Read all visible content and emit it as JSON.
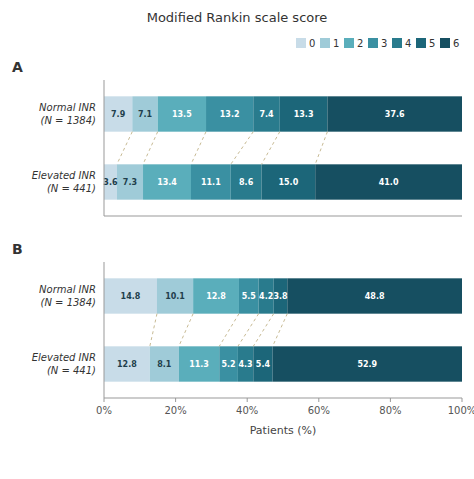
{
  "chart_data": [
    {
      "type": "bar",
      "orientation": "horizontal",
      "stacked": true,
      "data_labels": true,
      "title": "Modified Rankin scale score",
      "annotations": [
        "A"
      ],
      "categories": [
        "Normal INR\n(N = 1384)",
        "Elevated INR\n(N = 441)"
      ],
      "series": [
        {
          "name": "0",
          "color": "#c8dce8",
          "values": [
            7.9,
            3.6
          ],
          "value_labels": [
            "7.9",
            "3.6"
          ]
        },
        {
          "name": "1",
          "color": "#9fcbd8",
          "values": [
            7.1,
            7.3
          ],
          "value_labels": [
            "7.1",
            "7.3"
          ]
        },
        {
          "name": "2",
          "color": "#5aaebb",
          "values": [
            13.5,
            13.4
          ],
          "value_labels": [
            "13.5",
            "13.4"
          ]
        },
        {
          "name": "3",
          "color": "#3a90a2",
          "values": [
            13.2,
            11.1
          ],
          "value_labels": [
            "13.2",
            "11.1"
          ]
        },
        {
          "name": "4",
          "color": "#297b8d",
          "values": [
            7.4,
            8.6
          ],
          "value_labels": [
            "7.4",
            "8.6"
          ]
        },
        {
          "name": "5",
          "color": "#1c6679",
          "values": [
            13.3,
            15.0
          ],
          "value_labels": [
            "13.3",
            "15.0"
          ]
        },
        {
          "name": "6",
          "color": "#164f61",
          "values": [
            37.6,
            41.0
          ],
          "value_labels": [
            "37.6",
            "41.0"
          ]
        }
      ],
      "xlim": [
        0,
        100
      ],
      "tick_labels": false,
      "legend": "upper right"
    },
    {
      "type": "bar",
      "orientation": "horizontal",
      "stacked": true,
      "data_labels": true,
      "annotations": [
        "B"
      ],
      "xlabel": "Patients (%)",
      "categories": [
        "Normal INR\n(N = 1384)",
        "Elevated INR\n(N = 441)"
      ],
      "series": [
        {
          "color": "#c8dce8",
          "values": [
            14.8,
            12.8
          ],
          "value_labels": [
            "14.8",
            "12.8"
          ]
        },
        {
          "color": "#9fcbd8",
          "values": [
            10.1,
            8.1
          ],
          "value_labels": [
            "10.1",
            "8.1"
          ]
        },
        {
          "color": "#5aaebb",
          "values": [
            12.8,
            11.3
          ],
          "value_labels": [
            "12.8",
            "11.3"
          ]
        },
        {
          "color": "#3a90a2",
          "values": [
            5.5,
            5.2
          ],
          "value_labels": [
            "5.5",
            "5.2"
          ]
        },
        {
          "color": "#297b8d",
          "values": [
            4.2,
            4.3
          ],
          "value_labels": [
            "4.2",
            "4.3"
          ]
        },
        {
          "color": "#1c6679",
          "values": [
            3.8,
            5.4
          ],
          "value_labels": [
            "3.8",
            "5.4"
          ]
        },
        {
          "color": "#164f61",
          "values": [
            48.8,
            52.9
          ],
          "value_labels": [
            "48.8",
            "52.9"
          ]
        }
      ],
      "xlim": [
        0,
        100
      ],
      "xticks": [
        {
          "value": 0,
          "label": "0%"
        },
        {
          "value": 20,
          "label": "20%"
        },
        {
          "value": 40,
          "label": "40%"
        },
        {
          "value": 60,
          "label": "60%"
        },
        {
          "value": 80,
          "label": "80%"
        },
        {
          "value": 100,
          "label": "100%"
        }
      ]
    }
  ]
}
